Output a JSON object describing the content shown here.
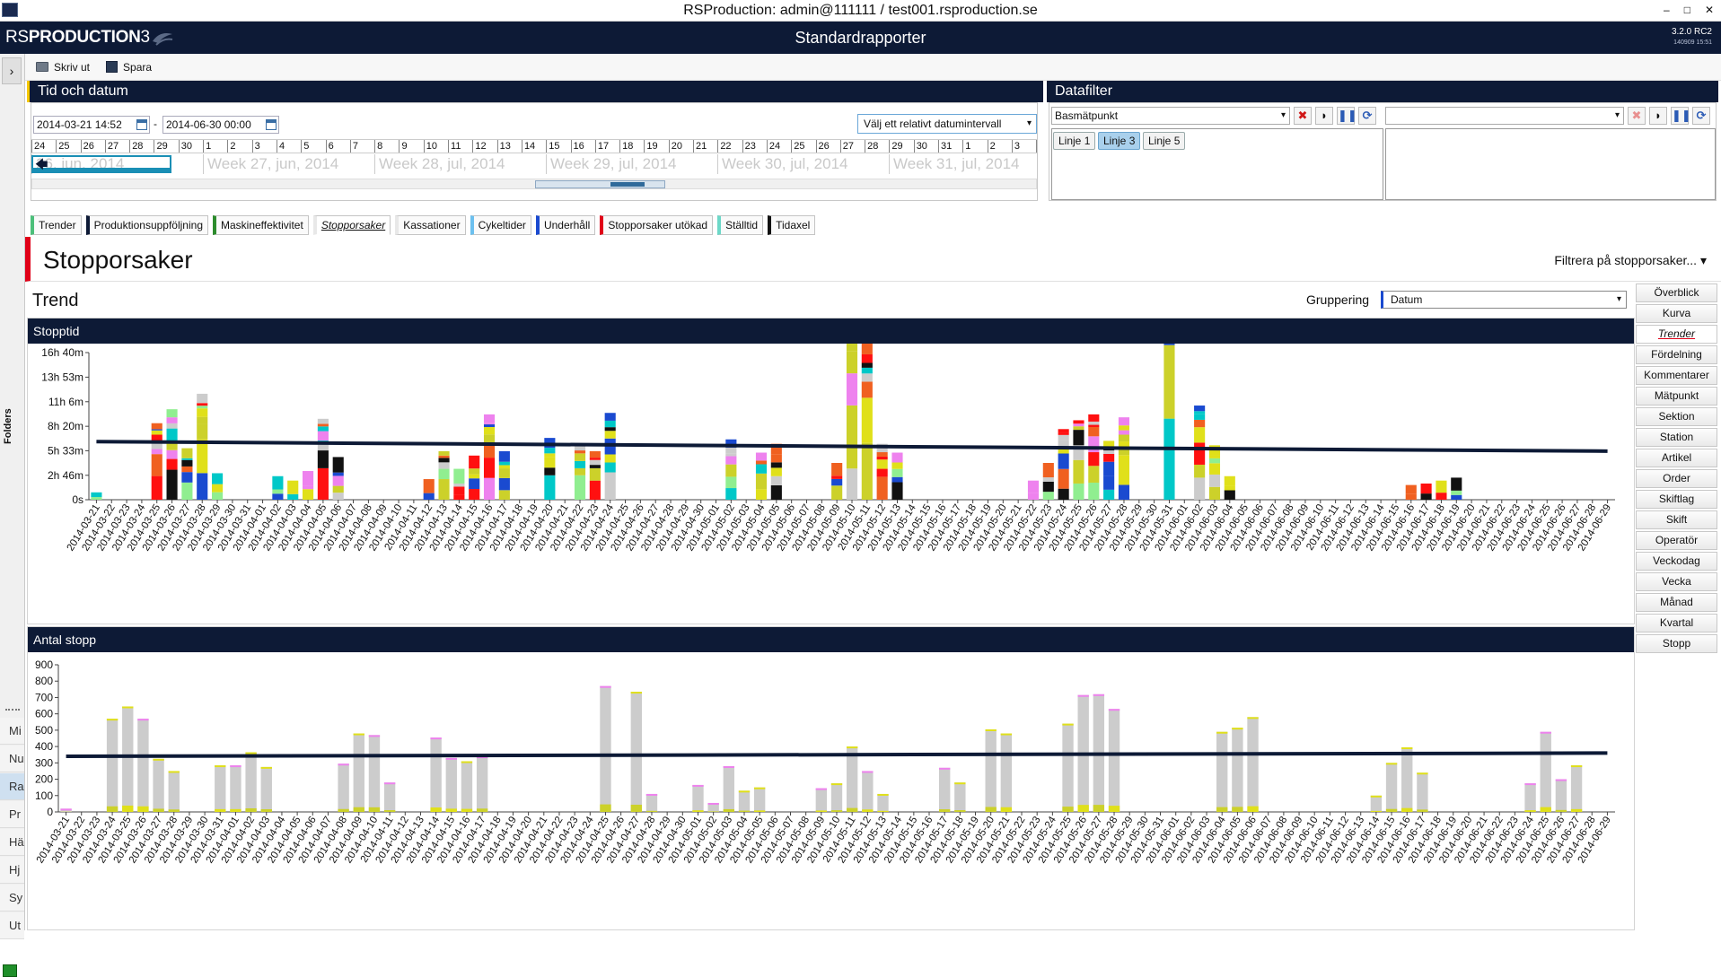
{
  "window": {
    "title": "RSProduction: admin@111111 / test001.rsproduction.se",
    "minimize": "–",
    "maximize": "□",
    "close": "✕"
  },
  "app": {
    "logo_prefix": "RS",
    "logo_main": "PRODUCTION",
    "logo_suffix": "3",
    "page_heading": "Standardrapporter",
    "version": "3.2.0 RC2",
    "build": "140909 15:51"
  },
  "toolbar": {
    "print_label": "Skriv ut",
    "save_label": "Spara"
  },
  "left_strip": {
    "expand": "›",
    "folders_label": "Folders",
    "tabs": [
      "Mi",
      "Nu",
      "Ra",
      "Pr",
      "Hä",
      "Hj",
      "Sy",
      "Ut"
    ],
    "selected_index": 2
  },
  "time_panel": {
    "title": "Tid och datum",
    "from": "2014-03-21 14:52",
    "separator": "-",
    "to": "2014-06-30 00:00",
    "relative_placeholder": "Välj ett relativt datumintervall",
    "days": [
      "24",
      "25",
      "26",
      "27",
      "28",
      "29",
      "30",
      "1",
      "2",
      "3",
      "4",
      "5",
      "6",
      "7",
      "8",
      "9",
      "10",
      "11",
      "12",
      "13",
      "14",
      "15",
      "16",
      "17",
      "18",
      "19",
      "20",
      "21",
      "22",
      "23",
      "24",
      "25",
      "26",
      "27",
      "28",
      "29",
      "30",
      "31",
      "1",
      "2",
      "3",
      "4"
    ],
    "weeks": [
      "26, jun, 2014",
      "Week 27, jun, 2014",
      "Week 28, jul, 2014",
      "Week 29, jul, 2014",
      "Week 30, jul, 2014",
      "Week 31, jul, 2014"
    ]
  },
  "data_filter": {
    "title": "Datafilter",
    "dropdown1": "Basmätpunkt",
    "dropdown2": "",
    "chips": [
      "Linje 1",
      "Linje 3",
      "Linje 5"
    ],
    "selected_chip": 1,
    "icons": [
      "clear-icon",
      "eraser-icon",
      "columns-icon",
      "refresh-icon"
    ]
  },
  "tabs": [
    {
      "label": "Trender",
      "color": "#4cbf7a"
    },
    {
      "label": "Produktionsuppföljning",
      "color": "#0d1a36"
    },
    {
      "label": "Maskineffektivitet",
      "color": "#2d8c2d"
    },
    {
      "label": "Stopporsaker",
      "color": "#e8e8e8"
    },
    {
      "label": "Kassationer",
      "color": "#e8e8e8"
    },
    {
      "label": "Cykeltider",
      "color": "#6cc0ef"
    },
    {
      "label": "Underhåll",
      "color": "#1a4ad0"
    },
    {
      "label": "Stopporsaker utökad",
      "color": "#e00018"
    },
    {
      "label": "Ställtid",
      "color": "#6cd8c8"
    },
    {
      "label": "Tidaxel",
      "color": "#111111"
    }
  ],
  "active_tab": 3,
  "page": {
    "title": "Stopporsaker",
    "filter_link": "Filtrera på stopporsaker...",
    "filter_caret": "▾",
    "section": "Trend",
    "grouping_label": "Gruppering",
    "grouping_value": "Datum"
  },
  "right_buttons": [
    "Överblick",
    "Kurva",
    "Trender",
    "Fördelning",
    "Kommentarer",
    "Mätpunkt",
    "Sektion",
    "Station",
    "Artikel",
    "Order",
    "Skiftlag",
    "Skift",
    "Operatör",
    "Veckodag",
    "Vecka",
    "Månad",
    "Kvartal",
    "Stopp"
  ],
  "active_right_button": 2,
  "chart_data": [
    {
      "type": "bar",
      "stacked": true,
      "title": "Stopptid",
      "y_unit": "minutes",
      "yticks": [
        {
          "value": 0,
          "label": "0s"
        },
        {
          "value": 166,
          "label": "2h 46m"
        },
        {
          "value": 333,
          "label": "5h 33m"
        },
        {
          "value": 499,
          "label": "8h 20m"
        },
        {
          "value": 666,
          "label": "11h 6m"
        },
        {
          "value": 833,
          "label": "13h 53m"
        },
        {
          "value": 1000,
          "label": "16h 40m"
        }
      ],
      "ylim": [
        0,
        1000
      ],
      "start_date": "2014-03-21",
      "n_categories": 101,
      "series_colors": [
        "#ccd12a",
        "#ff1010",
        "#f06020",
        "#1a4ad0",
        "#ee82ee",
        "#90ee90",
        "#e0e01a",
        "#cccccc",
        "#00c8c8",
        "#111111"
      ],
      "totals": [
        50,
        0,
        0,
        0,
        520,
        615,
        350,
        720,
        180,
        0,
        0,
        0,
        160,
        130,
        195,
        550,
        290,
        0,
        0,
        0,
        0,
        0,
        140,
        330,
        210,
        300,
        580,
        330,
        0,
        0,
        420,
        0,
        380,
        330,
        590,
        0,
        0,
        0,
        0,
        0,
        0,
        0,
        410,
        0,
        320,
        380,
        0,
        0,
        0,
        250,
        1320,
        1070,
        380,
        320,
        0,
        0,
        0,
        0,
        0,
        0,
        0,
        0,
        130,
        250,
        480,
        540,
        580,
        400,
        560,
        0,
        0,
        1700,
        0,
        640,
        370,
        160,
        0,
        0,
        0,
        0,
        0,
        0,
        0,
        0,
        0,
        0,
        0,
        100,
        110,
        130,
        150,
        0,
        0,
        0,
        0,
        0,
        0,
        0,
        0,
        0,
        0
      ],
      "trend": [
        395,
        330
      ]
    },
    {
      "type": "bar",
      "stacked": true,
      "title": "Antal stopp",
      "yticks": [
        0,
        100,
        200,
        300,
        400,
        500,
        600,
        700,
        800,
        900
      ],
      "ylim": [
        0,
        900
      ],
      "start_date": "2014-03-21",
      "n_categories": 101,
      "totals": [
        20,
        0,
        0,
        570,
        645,
        570,
        325,
        250,
        0,
        0,
        285,
        285,
        365,
        275,
        0,
        0,
        0,
        0,
        295,
        480,
        470,
        180,
        0,
        0,
        455,
        330,
        310,
        340,
        0,
        0,
        0,
        0,
        0,
        0,
        0,
        770,
        0,
        735,
        110,
        0,
        0,
        165,
        55,
        280,
        130,
        150,
        0,
        0,
        0,
        145,
        175,
        400,
        250,
        110,
        0,
        0,
        0,
        270,
        180,
        0,
        505,
        480,
        0,
        0,
        0,
        540,
        715,
        720,
        630,
        0,
        0,
        0,
        0,
        0,
        0,
        490,
        515,
        580,
        0,
        0,
        0,
        0,
        0,
        0,
        0,
        100,
        300,
        395,
        240,
        0,
        0,
        0,
        0,
        0,
        0,
        175,
        490,
        200,
        285,
        0,
        0
      ],
      "trend": [
        340,
        360
      ]
    }
  ]
}
